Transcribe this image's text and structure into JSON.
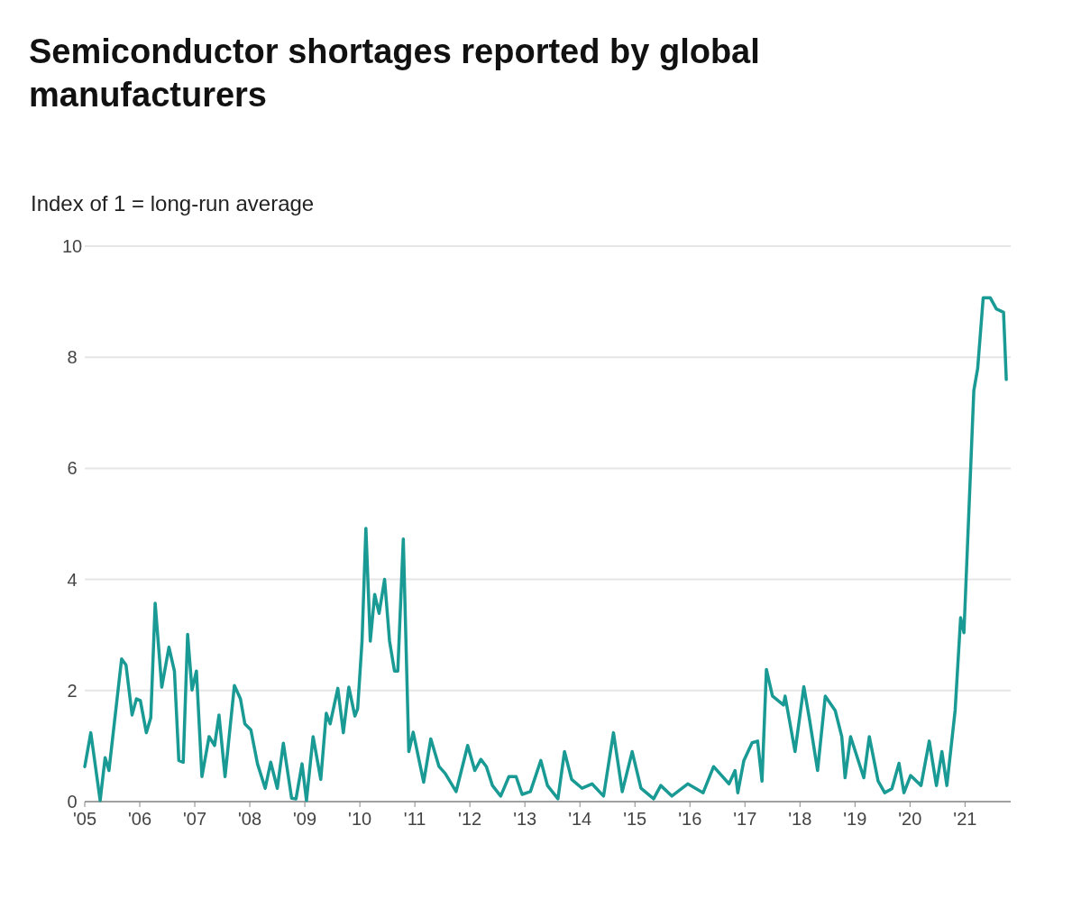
{
  "chart_data": {
    "type": "line",
    "title": "Semiconductor shortages reported by global manufacturers",
    "ylabel": "Index of 1 = long-run average",
    "x": [
      2005.0,
      2005.11,
      2005.28,
      2005.37,
      2005.44,
      2005.67,
      2005.75,
      2005.86,
      2005.94,
      2006.01,
      2006.12,
      2006.2,
      2006.28,
      2006.4,
      2006.53,
      2006.63,
      2006.71,
      2006.79,
      2006.87,
      2006.95,
      2007.03,
      2007.13,
      2007.26,
      2007.36,
      2007.44,
      2007.55,
      2007.72,
      2007.83,
      2007.91,
      2008.02,
      2008.14,
      2008.28,
      2008.38,
      2008.5,
      2008.61,
      2008.76,
      2008.84,
      2008.95,
      2009.03,
      2009.15,
      2009.29,
      2009.39,
      2009.46,
      2009.6,
      2009.7,
      2009.8,
      2009.91,
      2009.96,
      2010.04,
      2010.11,
      2010.19,
      2010.27,
      2010.35,
      2010.45,
      2010.54,
      2010.63,
      2010.69,
      2010.79,
      2010.89,
      2010.97,
      2011.16,
      2011.29,
      2011.44,
      2011.55,
      2011.75,
      2011.96,
      2012.09,
      2012.2,
      2012.3,
      2012.41,
      2012.56,
      2012.71,
      2012.84,
      2012.95,
      2013.1,
      2013.29,
      2013.41,
      2013.6,
      2013.72,
      2013.85,
      2014.04,
      2014.22,
      2014.43,
      2014.61,
      2014.77,
      2014.95,
      2015.11,
      2015.34,
      2015.47,
      2015.67,
      2015.96,
      2016.24,
      2016.43,
      2016.71,
      2016.82,
      2016.87,
      2016.98,
      2017.13,
      2017.23,
      2017.31,
      2017.39,
      2017.5,
      2017.7,
      2017.73,
      2017.91,
      2018.07,
      2018.17,
      2018.32,
      2018.46,
      2018.64,
      2018.76,
      2018.82,
      2018.92,
      2019.16,
      2019.26,
      2019.42,
      2019.54,
      2019.67,
      2019.8,
      2019.89,
      2020.01,
      2020.2,
      2020.35,
      2020.48,
      2020.58,
      2020.67,
      2020.82,
      2020.92,
      2020.98,
      2021.16,
      2021.23,
      2021.33,
      2021.46,
      2021.57,
      2021.7,
      2021.75
    ],
    "series": [
      {
        "color": "#1a9a94",
        "values": [
          0.63,
          1.24,
          0.02,
          0.79,
          0.56,
          2.57,
          2.46,
          1.56,
          1.85,
          1.82,
          1.24,
          1.51,
          3.57,
          2.06,
          2.78,
          2.35,
          0.74,
          0.71,
          3.01,
          2.01,
          2.35,
          0.45,
          1.17,
          1.01,
          1.56,
          0.45,
          2.09,
          1.85,
          1.4,
          1.29,
          0.68,
          0.24,
          0.71,
          0.24,
          1.05,
          0.06,
          0.05,
          0.68,
          0.02,
          1.17,
          0.4,
          1.59,
          1.4,
          2.04,
          1.24,
          2.06,
          1.54,
          1.67,
          2.89,
          4.92,
          2.89,
          3.73,
          3.39,
          4.0,
          2.89,
          2.35,
          2.35,
          4.73,
          0.9,
          1.25,
          0.35,
          1.13,
          0.63,
          0.51,
          0.18,
          1.01,
          0.56,
          0.76,
          0.63,
          0.29,
          0.1,
          0.45,
          0.45,
          0.13,
          0.18,
          0.74,
          0.29,
          0.05,
          0.9,
          0.4,
          0.24,
          0.32,
          0.1,
          1.24,
          0.18,
          0.9,
          0.24,
          0.05,
          0.29,
          0.1,
          0.32,
          0.16,
          0.63,
          0.32,
          0.56,
          0.16,
          0.74,
          1.06,
          1.09,
          0.37,
          2.38,
          1.9,
          1.74,
          1.9,
          0.9,
          2.07,
          1.5,
          0.56,
          1.9,
          1.64,
          1.17,
          0.43,
          1.17,
          0.43,
          1.17,
          0.37,
          0.16,
          0.23,
          0.69,
          0.16,
          0.47,
          0.29,
          1.09,
          0.29,
          0.9,
          0.29,
          1.64,
          3.31,
          3.04,
          7.4,
          7.8,
          9.07,
          9.07,
          8.87,
          8.81,
          7.6
        ]
      }
    ],
    "xlim": [
      2005,
      2021.83
    ],
    "xticks": [
      {
        "value": 2005,
        "label": "'05"
      },
      {
        "value": 2006,
        "label": "'06"
      },
      {
        "value": 2007,
        "label": "'07"
      },
      {
        "value": 2008,
        "label": "'08"
      },
      {
        "value": 2009,
        "label": "'09"
      },
      {
        "value": 2010,
        "label": "'10"
      },
      {
        "value": 2011,
        "label": "'11"
      },
      {
        "value": 2012,
        "label": "'12"
      },
      {
        "value": 2013,
        "label": "'13"
      },
      {
        "value": 2014,
        "label": "'14"
      },
      {
        "value": 2015,
        "label": "'15"
      },
      {
        "value": 2016,
        "label": "'16"
      },
      {
        "value": 2017,
        "label": "'17"
      },
      {
        "value": 2018,
        "label": "'18"
      },
      {
        "value": 2019,
        "label": "'19"
      },
      {
        "value": 2020,
        "label": "'20"
      },
      {
        "value": 2021,
        "label": "'21"
      }
    ],
    "ylim": [
      0,
      10
    ],
    "yticks": [
      0,
      2,
      4,
      6,
      8,
      10
    ],
    "grid": "y",
    "line_style": "solid",
    "marker": "none"
  }
}
